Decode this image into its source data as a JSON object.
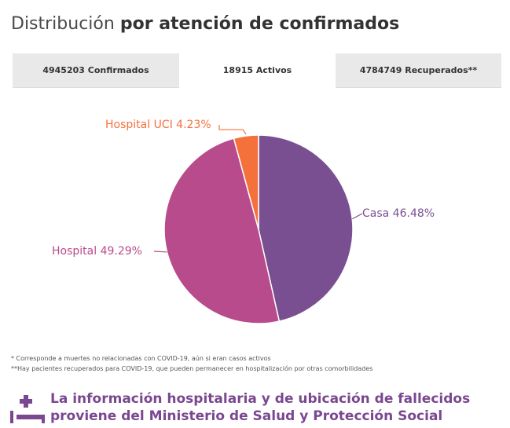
{
  "header": {
    "title_light": "Distribución",
    "title_bold": "por atención de confirmados"
  },
  "tabs": [
    {
      "label": "4945203 Confirmados",
      "active": false
    },
    {
      "label": "18915 Activos",
      "active": true
    },
    {
      "label": "4784749 Recuperados**",
      "active": false
    }
  ],
  "chart_data": {
    "type": "pie",
    "title": "",
    "slices": [
      {
        "label": "Casa 46.48%",
        "name": "Casa",
        "value": 46.48,
        "color": "#7a4f91"
      },
      {
        "label": "Hospital 49.29%",
        "name": "Hospital",
        "value": 49.29,
        "color": "#b84b8b"
      },
      {
        "label": "Hospital UCI 4.23%",
        "name": "Hospital UCI",
        "value": 4.23,
        "color": "#f5713c"
      }
    ]
  },
  "notes": [
    "* Corresponde a muertes no relacionadas con COVID-19, aún si eran casos activos",
    "**Hay pacientes recuperados para COVID-19, que pueden permanecer en hospitalización por otras comorbilidades"
  ],
  "footer": {
    "line1": "La información hospitalaria y de ubicación de fallecidos",
    "line2": "proviene del Ministerio de Salud y Protección Social",
    "icon_color": "#7a4790"
  }
}
